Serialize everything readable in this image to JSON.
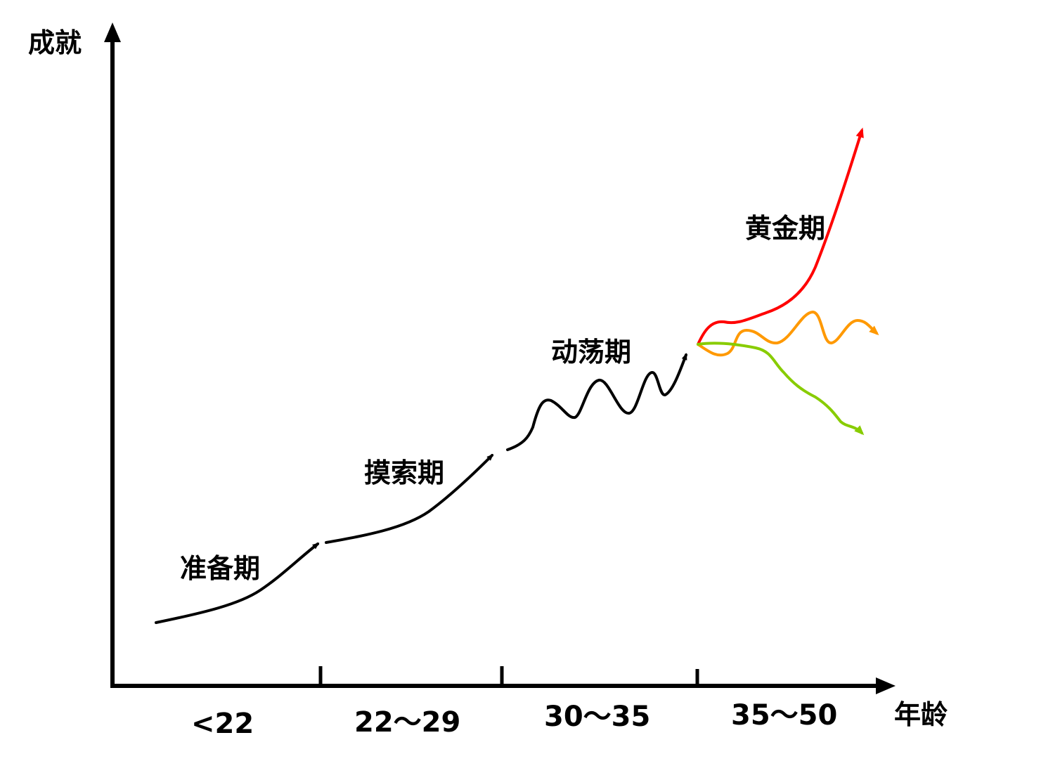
{
  "axes": {
    "y_label": "成就",
    "x_label": "年龄"
  },
  "phases": [
    {
      "name": "准备期",
      "age_range": "<22"
    },
    {
      "name": "摸索期",
      "age_range": "22～29"
    },
    {
      "name": "动荡期",
      "age_range": "30～35"
    },
    {
      "name": "黄金期",
      "age_range": "35～50"
    }
  ],
  "colors": {
    "axis": "#000000",
    "curve": "#000000",
    "branch_up": "#ff0000",
    "branch_flat": "#ff9900",
    "branch_down": "#88cc00"
  }
}
